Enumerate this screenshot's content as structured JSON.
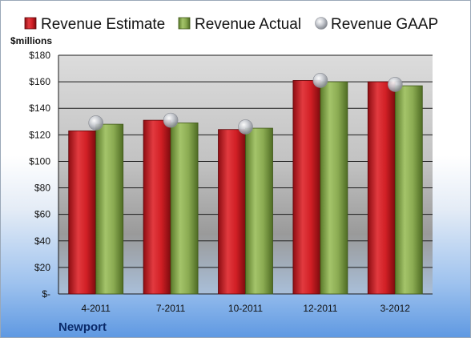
{
  "chart_data": {
    "type": "bar",
    "categories": [
      "4-2011",
      "7-2011",
      "10-2011",
      "12-2011",
      "3-2012"
    ],
    "series": [
      {
        "name": "Revenue Estimate",
        "type": "bar",
        "color": "#cc1f26",
        "values": [
          123,
          131,
          124,
          161,
          160
        ]
      },
      {
        "name": "Revenue Actual",
        "type": "bar",
        "color": "#86a84a",
        "values": [
          128,
          129,
          125,
          160,
          157
        ]
      },
      {
        "name": "Revenue GAAP",
        "type": "scatter",
        "color": "#b8bcc4",
        "values": [
          129,
          131,
          126,
          161,
          158
        ]
      }
    ],
    "y_unit": "$millions",
    "ylim": [
      0,
      180
    ],
    "yticks": [
      0,
      20,
      40,
      60,
      80,
      100,
      120,
      140,
      160,
      180
    ],
    "ytick_labels": [
      "$-",
      "$20",
      "$40",
      "$60",
      "$80",
      "$100",
      "$120",
      "$140",
      "$160",
      "$180"
    ],
    "grid": true,
    "legend_position": "top",
    "company": "Newport"
  }
}
